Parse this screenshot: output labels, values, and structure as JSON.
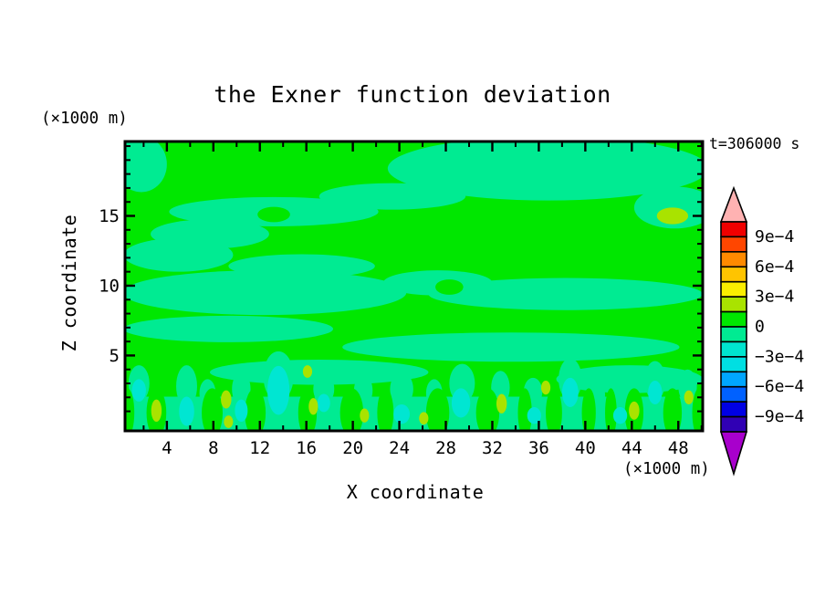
{
  "chart_data": {
    "type": "contour",
    "title": "the Exner function deviation",
    "annotation": "t=306000 s",
    "xlabel": "X coordinate",
    "xunit": "(×1000 m)",
    "ylabel": "Z coordinate",
    "yunit": "(×1000 m)",
    "x_axis": {
      "range": [
        0.4,
        50.1
      ],
      "major_ticks": [
        4,
        8,
        12,
        16,
        20,
        24,
        28,
        32,
        36,
        40,
        44,
        48
      ],
      "minor_ticks": [
        2,
        6,
        10,
        14,
        18,
        22,
        26,
        30,
        34,
        38,
        42,
        46,
        50
      ]
    },
    "y_axis": {
      "range": [
        -0.4,
        20.33
      ],
      "major_ticks": [
        5,
        10,
        15
      ],
      "minor_ticks": [
        1,
        2,
        3,
        4,
        6,
        7,
        8,
        9,
        11,
        12,
        13,
        14,
        16,
        17,
        18,
        19,
        20
      ]
    },
    "colorbar": {
      "labels": [
        "9e−4",
        "6e−4",
        "3e−4",
        "0",
        "−3e−4",
        "−6e−4",
        "−9e−4"
      ],
      "values": [
        0.0009,
        0.0006,
        0.0003,
        0,
        -0.0003,
        -0.0006,
        -0.0009
      ],
      "band_width": 0.00015,
      "segment_colors": [
        "#f00000",
        "#ff4600",
        "#ff8a00",
        "#ffc400",
        "#fbee00",
        "#a9e300",
        "#00e700",
        "#00eb92",
        "#00e5cf",
        "#00dfe2",
        "#00a6ff",
        "#0061ff",
        "#0000e4",
        "#3000b4"
      ],
      "over_arrow_color": "#ffb2b2",
      "under_arrow_color": "#a800cc"
    },
    "field": {
      "background_color": "#00e700",
      "colors": {
        "positive_small": "#00e700",
        "negative_small": "#00eb92",
        "negative_medium": "#00e6d2",
        "positive_medium": "#a9e300"
      },
      "regions": {
        "negative_bands": [
          [
            1.8,
            18.7,
            2.2,
            2.0
          ],
          [
            36.8,
            18.4,
            13.8,
            2.3
          ],
          [
            47.7,
            15.6,
            3.5,
            1.5
          ],
          [
            23.4,
            16.4,
            6.3,
            0.95
          ],
          [
            13.2,
            15.3,
            9.0,
            1.05
          ],
          [
            7.7,
            13.7,
            5.1,
            1.05
          ],
          [
            5.0,
            12.2,
            4.7,
            1.2
          ],
          [
            15.6,
            11.4,
            6.3,
            0.85
          ],
          [
            12.4,
            9.5,
            12.2,
            1.6
          ],
          [
            38.3,
            9.4,
            11.8,
            1.15
          ],
          [
            27.3,
            10.2,
            4.7,
            0.9
          ],
          [
            9.3,
            6.9,
            9.0,
            0.95
          ],
          [
            33.6,
            5.6,
            14.5,
            1.05
          ],
          [
            17.1,
            3.8,
            9.4,
            0.9
          ],
          [
            43.8,
            3.3,
            6.3,
            1.0
          ],
          [
            5.7,
            2.8,
            0.9,
            1.5
          ],
          [
            13.6,
            3.5,
            1.3,
            1.8
          ],
          [
            29.4,
            3.0,
            1.1,
            1.4
          ],
          [
            38.7,
            3.3,
            1.0,
            1.5
          ],
          [
            46.0,
            3.2,
            0.9,
            1.4
          ],
          [
            24.2,
            2.6,
            1.0,
            1.2
          ],
          [
            17.5,
            2.6,
            0.9,
            1.1
          ],
          [
            35.5,
            2.4,
            0.8,
            1.0
          ],
          [
            43.0,
            2.4,
            0.8,
            1.0
          ],
          [
            10.4,
            2.6,
            0.8,
            1.2
          ],
          [
            1.6,
            3.0,
            0.9,
            1.3
          ],
          [
            20.9,
            2.5,
            0.8,
            1.1
          ],
          [
            32.7,
            2.7,
            0.8,
            1.2
          ],
          [
            48.8,
            2.8,
            0.8,
            1.2
          ],
          [
            27.0,
            2.3,
            0.7,
            1.0
          ],
          [
            41.0,
            2.2,
            0.7,
            0.9
          ],
          [
            7.5,
            2.3,
            0.7,
            1.0
          ]
        ],
        "bottom_strip": {
          "x1": 0.4,
          "x2": 50.1,
          "z_top": 2.05
        },
        "positive_columns": [
          [
            0.6,
            0.9,
            0.6,
            1.75
          ],
          [
            3.1,
            0.9,
            0.85,
            1.75
          ],
          [
            7.9,
            0.9,
            0.9,
            1.75
          ],
          [
            11.6,
            0.9,
            0.9,
            1.75
          ],
          [
            16.1,
            0.9,
            0.8,
            1.75
          ],
          [
            19.9,
            0.9,
            1.0,
            1.75
          ],
          [
            22.8,
            0.9,
            0.7,
            1.75
          ],
          [
            27.3,
            0.9,
            1.0,
            1.75
          ],
          [
            31.6,
            0.9,
            1.0,
            1.75
          ],
          [
            34.8,
            0.9,
            0.6,
            1.75
          ],
          [
            37.3,
            0.9,
            0.7,
            1.75
          ],
          [
            40.3,
            0.9,
            0.6,
            1.75
          ],
          [
            42.2,
            0.9,
            0.5,
            1.75
          ],
          [
            44.2,
            0.9,
            0.8,
            1.75
          ],
          [
            47.5,
            0.9,
            0.8,
            1.75
          ],
          [
            49.8,
            0.9,
            0.6,
            1.75
          ]
        ],
        "positive_holes": [
          [
            13.2,
            15.1,
            1.4,
            0.55
          ],
          [
            28.3,
            9.9,
            1.2,
            0.55
          ]
        ],
        "cyan_spots": [
          [
            1.6,
            2.5,
            0.6,
            0.8
          ],
          [
            5.7,
            1.0,
            0.65,
            1.05
          ],
          [
            13.6,
            2.5,
            0.95,
            1.75
          ],
          [
            17.5,
            1.6,
            0.55,
            0.65
          ],
          [
            24.2,
            0.8,
            0.7,
            0.7
          ],
          [
            29.3,
            1.6,
            0.8,
            1.05
          ],
          [
            35.6,
            0.7,
            0.6,
            0.6
          ],
          [
            38.7,
            2.35,
            0.7,
            1.05
          ],
          [
            43.0,
            0.7,
            0.6,
            0.6
          ],
          [
            46.0,
            2.35,
            0.6,
            0.85
          ],
          [
            10.4,
            1.05,
            0.55,
            0.8
          ]
        ],
        "yellow_green_spots": [
          [
            3.1,
            1.05,
            0.45,
            0.8
          ],
          [
            9.1,
            1.85,
            0.45,
            0.65
          ],
          [
            9.3,
            0.25,
            0.4,
            0.45
          ],
          [
            16.1,
            3.85,
            0.4,
            0.45
          ],
          [
            16.6,
            1.35,
            0.4,
            0.6
          ],
          [
            21.0,
            0.7,
            0.4,
            0.5
          ],
          [
            26.1,
            0.5,
            0.4,
            0.45
          ],
          [
            32.8,
            1.55,
            0.45,
            0.7
          ],
          [
            36.6,
            2.7,
            0.4,
            0.5
          ],
          [
            44.2,
            1.05,
            0.45,
            0.65
          ],
          [
            48.9,
            2.0,
            0.4,
            0.5
          ],
          [
            47.5,
            15.0,
            1.35,
            0.6
          ]
        ]
      }
    }
  }
}
